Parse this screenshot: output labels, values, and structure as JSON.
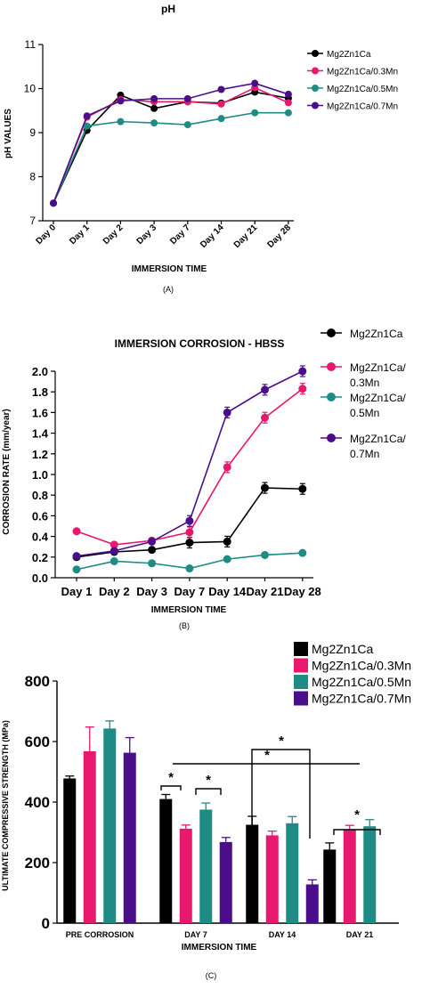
{
  "colors": {
    "Mg2Zn1Ca": "#000000",
    "Mg2Zn1Ca/0.3Mn": "#e8186e",
    "Mg2Zn1Ca/0.5Mn": "#1e8c84",
    "Mg2Zn1Ca/0.7Mn": "#4b0e8a"
  },
  "chart_data": [
    {
      "type": "line",
      "title": "pH",
      "xlabel": "IMMERSION TIME",
      "ylabel": "pH VALUES",
      "caption": "(A)",
      "ylim": [
        7,
        11
      ],
      "yticks": [
        "7",
        "8",
        "9",
        "10",
        "11"
      ],
      "categories": [
        "Day 0",
        "Day 1",
        "Day 2",
        "Day 3",
        "Day 7",
        "Day 14",
        "Day 21",
        "Day 28"
      ],
      "legend_position": "right",
      "series": [
        {
          "name": "Mg2Zn1Ca",
          "values": [
            7.4,
            9.05,
            9.85,
            9.55,
            9.7,
            9.67,
            9.92,
            9.78
          ]
        },
        {
          "name": "Mg2Zn1Ca/0.3Mn",
          "values": [
            7.4,
            9.35,
            9.75,
            9.7,
            9.7,
            9.65,
            10.02,
            9.68
          ]
        },
        {
          "name": "Mg2Zn1Ca/0.5Mn",
          "values": [
            7.4,
            9.15,
            9.25,
            9.22,
            9.18,
            9.32,
            9.45,
            9.45
          ]
        },
        {
          "name": "Mg2Zn1Ca/0.7Mn",
          "values": [
            7.4,
            9.38,
            9.72,
            9.77,
            9.77,
            9.98,
            10.12,
            9.87
          ]
        }
      ]
    },
    {
      "type": "line",
      "title": "IMMERSION CORROSION - HBSS",
      "xlabel": "IMMERSION TIME",
      "ylabel": "CORROSION RATE (mm/year)",
      "caption": "(B)",
      "ylim": [
        0,
        2.0
      ],
      "yticks": [
        "0.0",
        "0.2",
        "0.4",
        "0.6",
        "0.8",
        "1.0",
        "1.2",
        "1.4",
        "1.6",
        "1.8",
        "2.0"
      ],
      "categories": [
        "Day 1",
        "Day 2",
        "Day 3",
        "Day 7",
        "Day 14",
        "Day 21",
        "Day 28"
      ],
      "legend_position": "top-right",
      "legend_labels": [
        [
          "Mg2Zn1Ca"
        ],
        [
          "Mg2Zn1Ca/",
          "0.3Mn"
        ],
        [
          "Mg2Zn1Ca/",
          "0.5Mn"
        ],
        [
          "Mg2Zn1Ca/",
          "0.7Mn"
        ]
      ],
      "series": [
        {
          "name": "Mg2Zn1Ca",
          "values": [
            0.2,
            0.25,
            0.27,
            0.34,
            0.35,
            0.87,
            0.86
          ]
        },
        {
          "name": "Mg2Zn1Ca/0.3Mn",
          "values": [
            0.45,
            0.32,
            0.36,
            0.44,
            1.07,
            1.55,
            1.83
          ]
        },
        {
          "name": "Mg2Zn1Ca/0.5Mn",
          "values": [
            0.08,
            0.16,
            0.14,
            0.09,
            0.18,
            0.22,
            0.24
          ]
        },
        {
          "name": "Mg2Zn1Ca/0.7Mn",
          "values": [
            0.21,
            0.26,
            0.35,
            0.55,
            1.6,
            1.82,
            2.0
          ]
        }
      ]
    },
    {
      "type": "bar",
      "title": "",
      "xlabel": "IMMERSION TIME",
      "ylabel": "ULTIMATE COMPRESSIVE STRENGTH (MPa)",
      "caption": "(C)",
      "ylim": [
        0,
        800
      ],
      "yticks": [
        "0",
        "200",
        "400",
        "600",
        "800"
      ],
      "categories": [
        "PRE CORROSION",
        "DAY 7",
        "DAY 14",
        "DAY 21"
      ],
      "legend_position": "top-right",
      "series": [
        {
          "name": "Mg2Zn1Ca",
          "values": [
            478,
            410,
            325,
            243
          ],
          "errors": [
            8,
            15,
            28,
            22
          ]
        },
        {
          "name": "Mg2Zn1Ca/0.3Mn",
          "values": [
            568,
            312,
            290,
            308
          ],
          "errors": [
            80,
            12,
            14,
            15
          ]
        },
        {
          "name": "Mg2Zn1Ca/0.5Mn",
          "values": [
            643,
            375,
            330,
            320
          ],
          "errors": [
            25,
            22,
            22,
            22
          ]
        },
        {
          "name": "Mg2Zn1Ca/0.7Mn",
          "values": [
            563,
            268,
            128,
            null
          ],
          "errors": [
            50,
            15,
            15,
            null
          ]
        }
      ],
      "significance_marker": "*"
    }
  ]
}
